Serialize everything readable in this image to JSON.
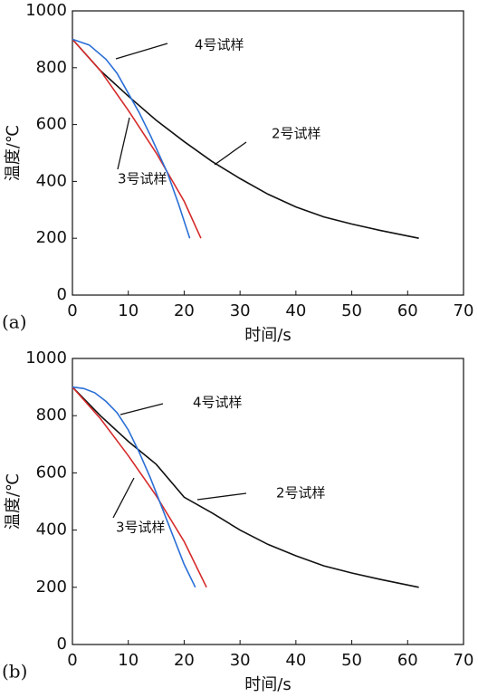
{
  "chart_data": [
    {
      "type": "line",
      "panel_label": "(a)",
      "xlabel": "时间/s",
      "ylabel": "温度/℃",
      "xlim": [
        0,
        70
      ],
      "ylim": [
        0,
        1000
      ],
      "xticks": [
        0,
        10,
        20,
        30,
        40,
        50,
        60,
        70
      ],
      "yticks": [
        0,
        200,
        400,
        600,
        800,
        1000
      ],
      "series": [
        {
          "name": "2号试样",
          "color": "#111111",
          "x": [
            0,
            5,
            10,
            15,
            20,
            25,
            30,
            35,
            40,
            45,
            50,
            55,
            62
          ],
          "values": [
            900,
            790,
            700,
            615,
            540,
            470,
            410,
            355,
            310,
            275,
            250,
            228,
            200
          ]
        },
        {
          "name": "3号试样",
          "color": "#d62a2a",
          "x": [
            0,
            5,
            10,
            15,
            20,
            23
          ],
          "values": [
            900,
            790,
            650,
            500,
            330,
            200
          ]
        },
        {
          "name": "4号试样",
          "color": "#2a6fd6",
          "x": [
            0,
            3,
            6,
            8,
            10,
            12,
            14,
            17,
            19,
            21
          ],
          "values": [
            900,
            880,
            830,
            780,
            710,
            640,
            560,
            430,
            320,
            200
          ]
        }
      ]
    },
    {
      "type": "line",
      "panel_label": "(b)",
      "xlabel": "时间/s",
      "ylabel": "温度/℃",
      "xlim": [
        0,
        70
      ],
      "ylim": [
        0,
        1000
      ],
      "xticks": [
        0,
        10,
        20,
        30,
        40,
        50,
        60,
        70
      ],
      "yticks": [
        0,
        200,
        400,
        600,
        800,
        1000
      ],
      "series": [
        {
          "name": "2号试样",
          "color": "#111111",
          "x": [
            0,
            5,
            10,
            15,
            20,
            25,
            30,
            35,
            40,
            45,
            50,
            55,
            62
          ],
          "values": [
            900,
            800,
            710,
            630,
            515,
            460,
            400,
            350,
            310,
            275,
            250,
            228,
            200
          ]
        },
        {
          "name": "3号试样",
          "color": "#d62a2a",
          "x": [
            0,
            5,
            10,
            15,
            20,
            24
          ],
          "values": [
            900,
            790,
            660,
            520,
            360,
            200
          ]
        },
        {
          "name": "4号试样",
          "color": "#2a6fd6",
          "x": [
            0,
            2,
            4,
            6,
            8,
            10,
            12,
            14,
            16,
            18,
            20,
            22
          ],
          "values": [
            900,
            895,
            880,
            850,
            810,
            750,
            670,
            580,
            480,
            380,
            280,
            200
          ]
        }
      ]
    }
  ]
}
